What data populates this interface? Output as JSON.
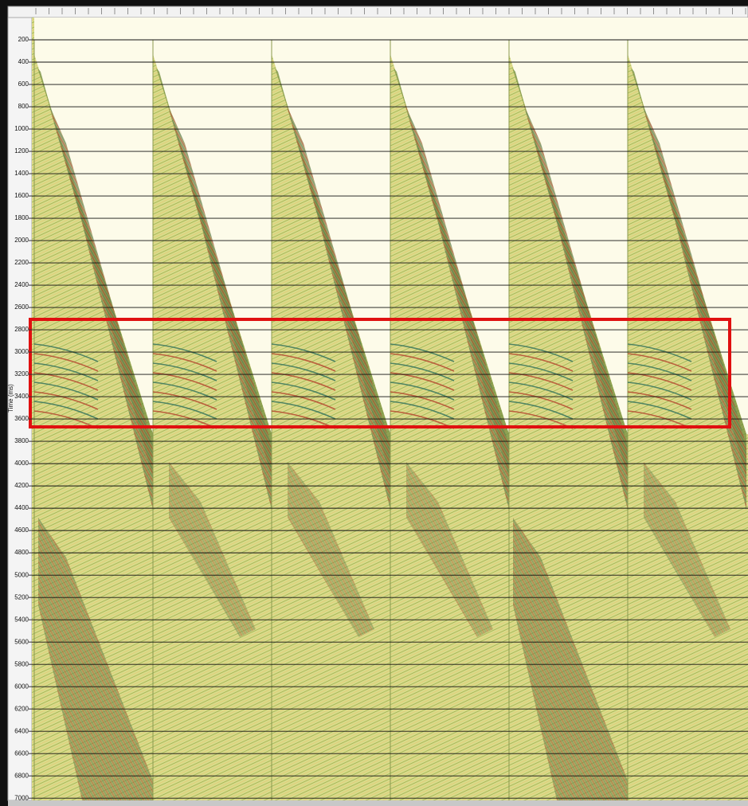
{
  "chart_data": {
    "type": "seismic",
    "ylabel": "Time (ms)",
    "ylim": [
      0,
      7020
    ],
    "yticks": [
      200,
      400,
      600,
      800,
      1000,
      1200,
      1400,
      1600,
      1800,
      2000,
      2200,
      2400,
      2600,
      2800,
      3000,
      3200,
      3400,
      3600,
      3800,
      4000,
      4200,
      4400,
      4600,
      4800,
      5000,
      5200,
      5400,
      5600,
      5800,
      6000,
      6200,
      6400,
      6600,
      6800,
      7000
    ],
    "grid": true
  }
}
